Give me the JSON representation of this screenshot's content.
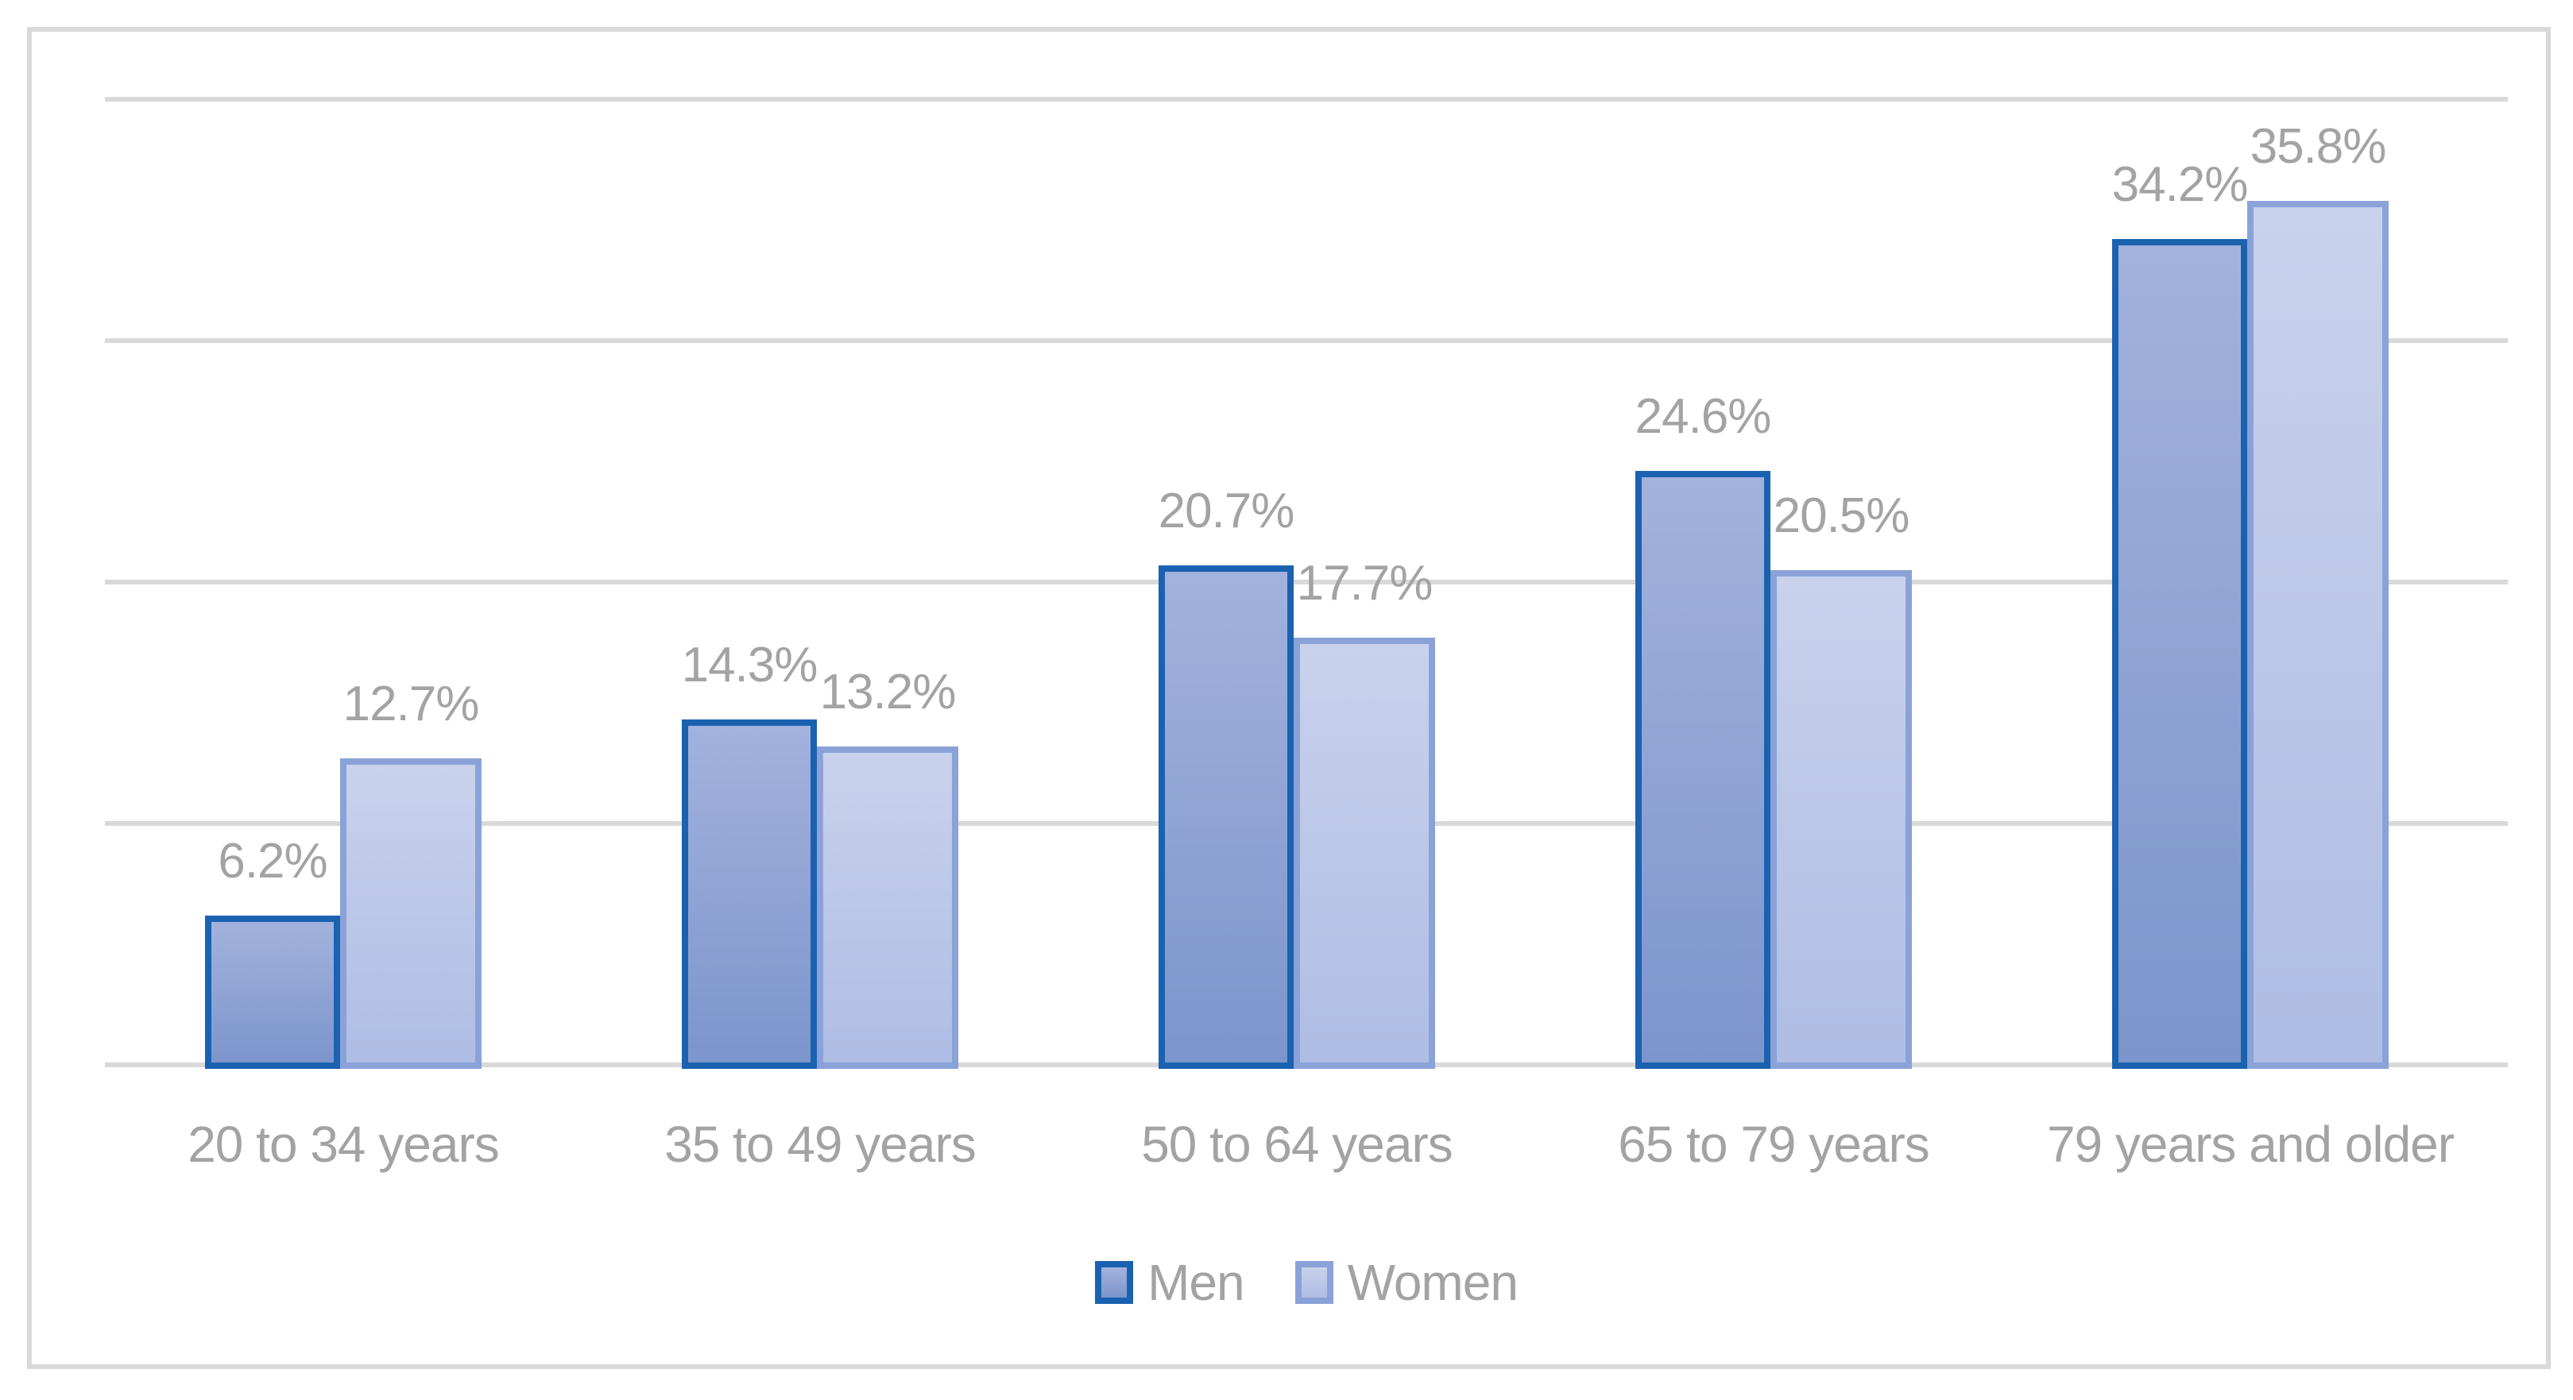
{
  "chart_data": {
    "type": "bar",
    "title": "",
    "xlabel": "",
    "ylabel": "",
    "categories": [
      "20 to 34 years",
      "35 to 49 years",
      "50 to 64 years",
      "65 to 79 years",
      "79 years and older"
    ],
    "series": [
      {
        "name": "Men",
        "values": [
          6.2,
          14.3,
          20.7,
          24.6,
          34.2
        ],
        "data_labels": [
          "6.2%",
          "14.3%",
          "20.7%",
          "24.6%",
          "34.2%"
        ]
      },
      {
        "name": "Women",
        "values": [
          12.7,
          13.2,
          17.7,
          20.5,
          35.8
        ],
        "data_labels": [
          "12.7%",
          "13.2%",
          "17.7%",
          "20.5%",
          "35.8%"
        ]
      }
    ],
    "ylim": [
      0,
      40
    ],
    "gridlines": {
      "show": true,
      "step": 10,
      "values": [
        0,
        10,
        20,
        30,
        40
      ],
      "y_tick_labels_visible": false
    },
    "legend": {
      "position": "bottom",
      "entries": [
        "Men",
        "Women"
      ]
    },
    "value_suffix": "%"
  },
  "colors": {
    "men_border": "#1A62B0",
    "men_fill_top": "#A3B2DD",
    "men_fill_bottom": "#7C95CC",
    "women_border": "#8AA2D8",
    "women_fill_top": "#C9D2EC",
    "women_fill_bottom": "#AEBDE4",
    "gridline": "#D9D9D9",
    "frame_border": "#D9D9D9",
    "text_gray": "#A3A3A3"
  }
}
